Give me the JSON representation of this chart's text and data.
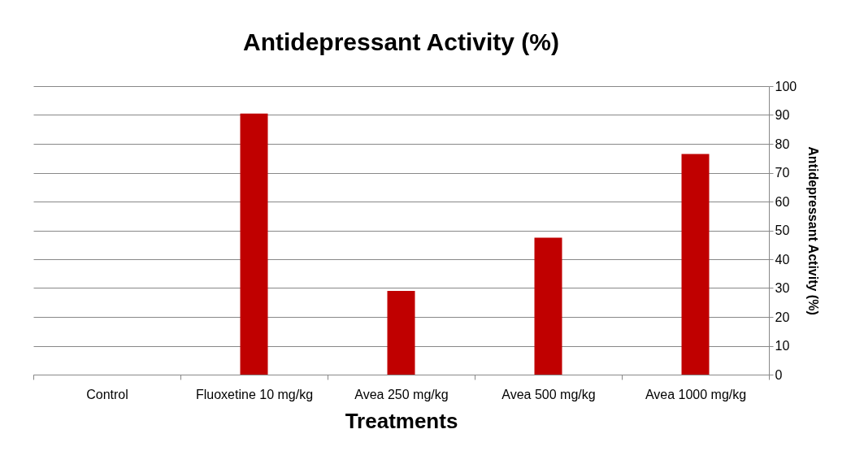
{
  "chart_data": {
    "type": "bar",
    "title": "Antidepressant Activity (%)",
    "xlabel": "Treatments",
    "ylabel": "Antidepressant Activity (%)",
    "categories": [
      "Control",
      "Fluoxetine 10 mg/kg",
      "Avea 250 mg/kg",
      "Avea 500 mg/kg",
      "Avea 1000 mg/kg"
    ],
    "values": [
      0,
      90.5,
      29,
      47.5,
      76.5
    ],
    "color": "#c00000",
    "ylim": [
      0,
      100
    ],
    "yticks": [
      0,
      10,
      20,
      30,
      40,
      50,
      60,
      70,
      80,
      90,
      100
    ],
    "grid": "y"
  }
}
